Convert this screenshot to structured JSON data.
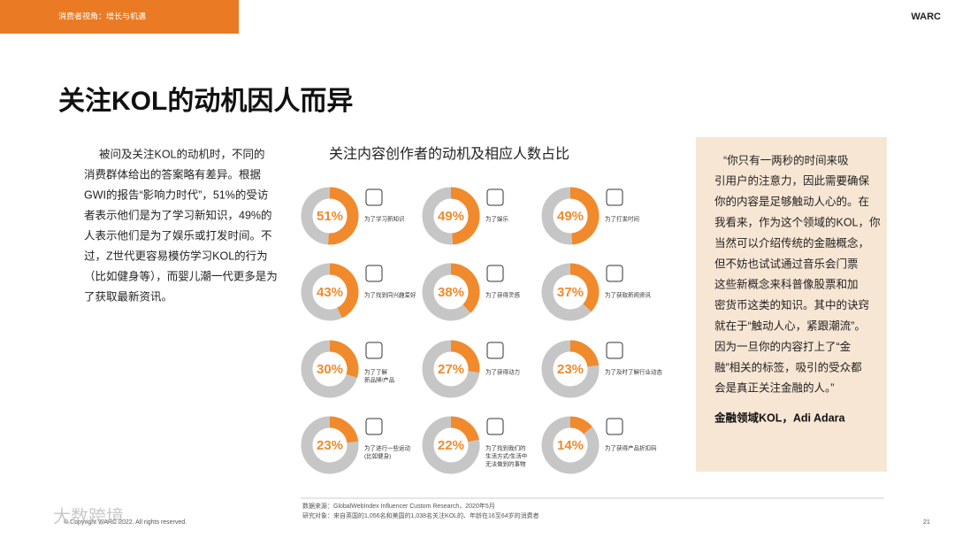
{
  "header": {
    "section": "消费者视角：增长与机遇",
    "brand": "WARC",
    "title": "关注KOL的动机因人而异"
  },
  "body": {
    "lines": [
      "被问及关注KOL的动机时，不同的",
      "消费群体给出的答案略有差异。根据",
      "GWI的报告“影响力时代”，51%的受访",
      "者表示他们是为了学习新知识，49%的",
      "人表示他们是为了娱乐或打发时间。不",
      "过，Z世代更容易模仿学习KOL的行为",
      "（比如健身等），而婴儿潮一代更多是为",
      "了获取最新资讯。"
    ]
  },
  "chart_title": "关注内容创作者的动机及相应人数占比",
  "chart_data": [
    {
      "type": "donut",
      "caption": [
        "为了学习新知识"
      ],
      "values": [
        51,
        49
      ],
      "value_labels": [
        "51%",
        null
      ],
      "colors": [
        "#f08a2c",
        "#c6c6c6"
      ]
    },
    {
      "type": "donut",
      "caption": [
        "为了娱乐"
      ],
      "values": [
        49,
        51
      ],
      "value_labels": [
        "49%",
        null
      ],
      "colors": [
        "#f08a2c",
        "#c6c6c6"
      ]
    },
    {
      "type": "donut",
      "caption": [
        "为了打发时间"
      ],
      "values": [
        49,
        51
      ],
      "value_labels": [
        "49%",
        null
      ],
      "colors": [
        "#f08a2c",
        "#c6c6c6"
      ]
    },
    {
      "type": "donut",
      "caption": [
        "为了找到同兴趣爱好"
      ],
      "values": [
        43,
        57
      ],
      "value_labels": [
        "43%",
        null
      ],
      "colors": [
        "#f08a2c",
        "#c6c6c6"
      ]
    },
    {
      "type": "donut",
      "caption": [
        "为了获得灵感"
      ],
      "values": [
        38,
        62
      ],
      "value_labels": [
        "38%",
        null
      ],
      "colors": [
        "#f08a2c",
        "#c6c6c6"
      ]
    },
    {
      "type": "donut",
      "caption": [
        "为了获取新闻资讯"
      ],
      "values": [
        37,
        63
      ],
      "value_labels": [
        "37%",
        null
      ],
      "colors": [
        "#f08a2c",
        "#c6c6c6"
      ]
    },
    {
      "type": "donut",
      "caption": [
        "为了了解",
        "新品牌/产品"
      ],
      "values": [
        30,
        70
      ],
      "value_labels": [
        "30%",
        null
      ],
      "colors": [
        "#f08a2c",
        "#c6c6c6"
      ]
    },
    {
      "type": "donut",
      "caption": [
        "为了获得动力"
      ],
      "values": [
        27,
        73
      ],
      "value_labels": [
        "27%",
        null
      ],
      "colors": [
        "#f08a2c",
        "#c6c6c6"
      ]
    },
    {
      "type": "donut",
      "caption": [
        "为了及时了解行业动态"
      ],
      "values": [
        23,
        77
      ],
      "value_labels": [
        "23%",
        null
      ],
      "colors": [
        "#f08a2c",
        "#c6c6c6"
      ]
    },
    {
      "type": "donut",
      "caption": [
        "为了进行一些运动",
        "(比如健身)"
      ],
      "values": [
        23,
        77
      ],
      "value_labels": [
        "23%",
        null
      ],
      "colors": [
        "#f08a2c",
        "#c6c6c6"
      ]
    },
    {
      "type": "donut",
      "caption": [
        "为了找到我们的",
        "生活方式/生活中",
        "无法做到的事物"
      ],
      "values": [
        22,
        78
      ],
      "value_labels": [
        "22%",
        null
      ],
      "colors": [
        "#f08a2c",
        "#c6c6c6"
      ]
    },
    {
      "type": "donut",
      "caption": [
        "为了获得产品折扣码"
      ],
      "values": [
        14,
        86
      ],
      "value_labels": [
        "14%",
        null
      ],
      "colors": [
        "#f08a2c",
        "#c6c6c6"
      ]
    }
  ],
  "quote": {
    "lines": [
      "“你只有一两秒的时间来吸",
      "引用户的注意力，因此需要确保",
      "你的内容是足够触动人心的。在",
      "我看来，作为这个领域的KOL，你",
      "当然可以介绍传统的金融概念，",
      "但不妨也试试通过音乐会门票",
      "这些新概念来科普像股票和加",
      "密货币这类的知识。其中的诀窍",
      "就在于“触动人心，紧跟潮流”。",
      "因为一旦你的内容打上了“金",
      "融”相关的标签，吸引的受众都",
      "会是真正关注金融的人。”"
    ],
    "author": "金融领域KOL，Adi Adara"
  },
  "footer": {
    "source": [
      "数据来源：GlobalWebIndex Influencer Custom Research，2020年5月",
      "研究对象：来自英国的1,056名和美国的1,038名关注KOL的、年龄在16至64岁的消费者"
    ],
    "copyright": "© Copyright WARC 2022. All rights reserved.",
    "page": "21",
    "watermark": "大数跨境"
  }
}
